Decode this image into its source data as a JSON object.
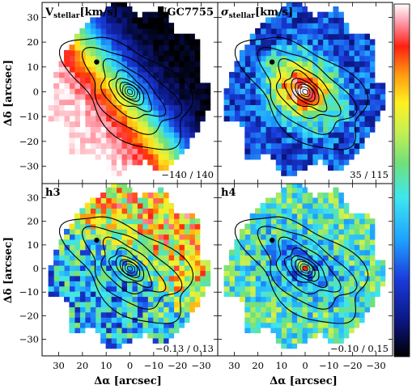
{
  "chart_data": {
    "type": "heatmap",
    "xlabel": "Δα [arcsec]",
    "ylabel": "Δδ [arcsec]",
    "xlim": [
      37,
      -37
    ],
    "ylim": [
      -37,
      36
    ],
    "x_ticks": [
      30,
      20,
      10,
      0,
      -10,
      -20,
      -30
    ],
    "y_ticks": [
      30,
      20,
      10,
      0,
      -10,
      -20,
      -30
    ],
    "galaxy": "NGC7755",
    "colorbar": "vertical, rainbow (black-blue-cyan-green-yellow-red-white)",
    "panels": [
      {
        "title_main": "V",
        "title_sub": "stellar",
        "title_unit": "[km/s]",
        "range": "−140 / 140"
      },
      {
        "title_main": "σ",
        "title_sub": "stellar",
        "title_unit": "[km/s]",
        "range": "35 / 115"
      },
      {
        "title_main": "h3",
        "title_sub": "",
        "title_unit": "",
        "range": "−0.13 / 0.13"
      },
      {
        "title_main": "h4",
        "title_sub": "",
        "title_unit": "",
        "range": "−0.10 / 0.15"
      }
    ]
  }
}
